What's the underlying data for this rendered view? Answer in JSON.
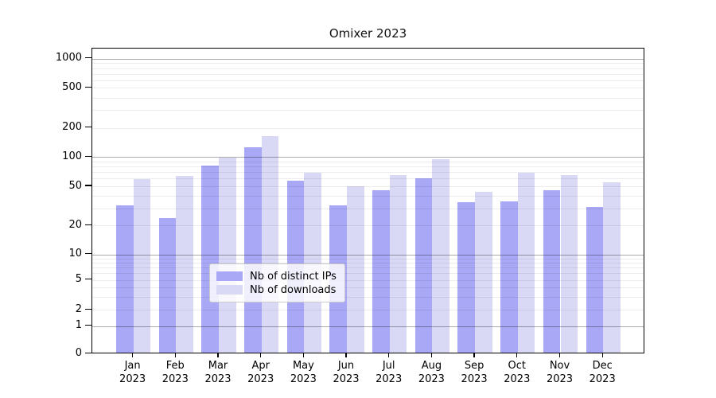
{
  "title": "Omixer 2023",
  "chart_data": {
    "type": "bar",
    "title": "Omixer 2023",
    "categories": [
      "Jan 2023",
      "Feb 2023",
      "Mar 2023",
      "Apr 2023",
      "May 2023",
      "Jun 2023",
      "Jul 2023",
      "Aug 2023",
      "Sep 2023",
      "Oct 2023",
      "Nov 2023",
      "Dec 2023"
    ],
    "series": [
      {
        "name": "Nb of distinct IPs",
        "color": "#a8a8f6",
        "values": [
          31,
          23,
          79,
          122,
          55,
          31,
          44,
          58,
          33,
          34,
          44,
          30
        ]
      },
      {
        "name": "Nb of downloads",
        "color": "#d9d9f6",
        "values": [
          57,
          62,
          95,
          160,
          67,
          48,
          63,
          92,
          42,
          67,
          63,
          53
        ]
      }
    ],
    "xlabel": "",
    "ylabel": "",
    "yscale": "log1p",
    "ylim": [
      0,
      1270
    ],
    "y_ticks": [
      1000,
      500,
      200,
      100,
      50,
      20,
      10,
      5,
      2,
      1,
      0
    ],
    "grid": "horizontal, major decade lines dark, minor log lines faint, drawn above bars",
    "legend_position": "lower center"
  },
  "legend": {
    "items": [
      {
        "label": "Nb of distinct IPs",
        "color": "#a8a8f6"
      },
      {
        "label": "Nb of downloads",
        "color": "#d9d9f6"
      }
    ]
  }
}
